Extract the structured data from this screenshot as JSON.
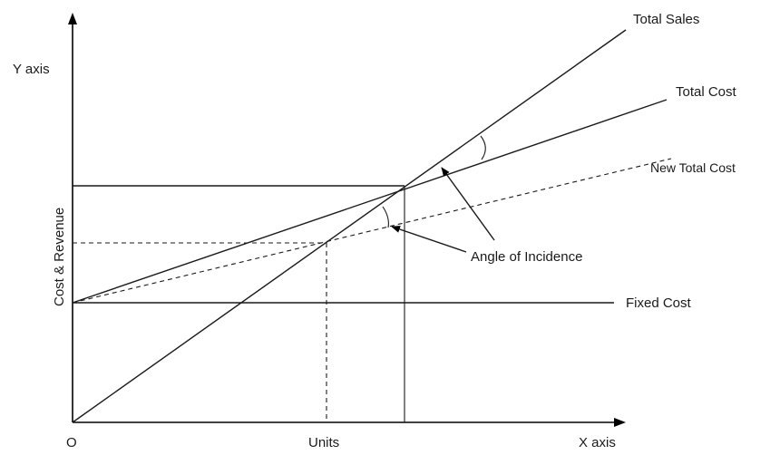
{
  "labels": {
    "y_axis": "Y axis",
    "x_axis": "X axis",
    "origin": "O",
    "units": "Units",
    "cost_revenue": "Cost & Revenue",
    "total_sales": "Total Sales",
    "total_cost": "Total Cost",
    "new_total_cost": "New Total Cost",
    "angle_of_incidence": "Angle of Incidence",
    "fixed_cost": "Fixed Cost"
  }
}
